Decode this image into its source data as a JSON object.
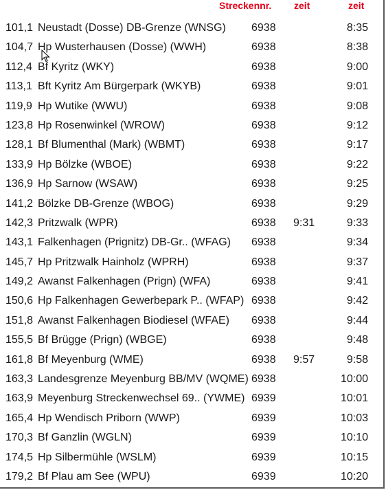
{
  "header": {
    "strecke_label": "Streckennr.",
    "arrival_label": "zeit",
    "departure_label": "zeit"
  },
  "rows": [
    {
      "km": "101,1",
      "station": "Neustadt (Dosse) DB-Grenze (WNSG)",
      "line": "6938",
      "arr": "",
      "dep": "8:35"
    },
    {
      "km": "104,7",
      "station": "Hp Wusterhausen (Dosse) (WWH)",
      "line": "6938",
      "arr": "",
      "dep": "8:38"
    },
    {
      "km": "112,4",
      "station": "Bf Kyritz (WKY)",
      "line": "6938",
      "arr": "",
      "dep": "9:00"
    },
    {
      "km": "113,1",
      "station": "Bft Kyritz Am Bürgerpark (WKYB)",
      "line": "6938",
      "arr": "",
      "dep": "9:01"
    },
    {
      "km": "119,9",
      "station": "Hp Wutike (WWU)",
      "line": "6938",
      "arr": "",
      "dep": "9:08"
    },
    {
      "km": "123,8",
      "station": "Hp Rosenwinkel (WROW)",
      "line": "6938",
      "arr": "",
      "dep": "9:12"
    },
    {
      "km": "128,1",
      "station": "Bf Blumenthal (Mark) (WBMT)",
      "line": "6938",
      "arr": "",
      "dep": "9:17"
    },
    {
      "km": "133,9",
      "station": "Hp Bölzke (WBOE)",
      "line": "6938",
      "arr": "",
      "dep": "9:22"
    },
    {
      "km": "136,9",
      "station": "Hp Sarnow (WSAW)",
      "line": "6938",
      "arr": "",
      "dep": "9:25"
    },
    {
      "km": "141,2",
      "station": "Bölzke DB-Grenze (WBOG)",
      "line": "6938",
      "arr": "",
      "dep": "9:29"
    },
    {
      "km": "142,3",
      "station": "Pritzwalk (WPR)",
      "line": "6938",
      "arr": "9:31",
      "dep": "9:33"
    },
    {
      "km": "143,1",
      "station": "Falkenhagen (Prignitz) DB-Gr.. (WFAG)",
      "line": "6938",
      "arr": "",
      "dep": "9:34"
    },
    {
      "km": "145,7",
      "station": "Hp Pritzwalk Hainholz (WPRH)",
      "line": "6938",
      "arr": "",
      "dep": "9:37"
    },
    {
      "km": "149,2",
      "station": "Awanst Falkenhagen (Prign) (WFA)",
      "line": "6938",
      "arr": "",
      "dep": "9:41"
    },
    {
      "km": "150,6",
      "station": "Hp Falkenhagen Gewerbepark P.. (WFAP)",
      "line": "6938",
      "arr": "",
      "dep": "9:42"
    },
    {
      "km": "151,8",
      "station": "Awanst Falkenhagen Biodiesel (WFAE)",
      "line": "6938",
      "arr": "",
      "dep": "9:44"
    },
    {
      "km": "155,5",
      "station": "Bf Brügge (Prign) (WBGE)",
      "line": "6938",
      "arr": "",
      "dep": "9:48"
    },
    {
      "km": "161,8",
      "station": "Bf Meyenburg (WME)",
      "line": "6938",
      "arr": "9:57",
      "dep": "9:58"
    },
    {
      "km": "163,3",
      "station": "Landesgrenze Meyenburg BB/MV (WQME)",
      "line": "6938",
      "arr": "",
      "dep": "10:00"
    },
    {
      "km": "163,9",
      "station": "Meyenburg Streckenwechsel 69.. (YWME)",
      "line": "6939",
      "arr": "",
      "dep": "10:01"
    },
    {
      "km": "165,4",
      "station": "Hp Wendisch Priborn (WWP)",
      "line": "6939",
      "arr": "",
      "dep": "10:03"
    },
    {
      "km": "170,3",
      "station": "Bf Ganzlin (WGLN)",
      "line": "6939",
      "arr": "",
      "dep": "10:10"
    },
    {
      "km": "174,5",
      "station": "Hp Silbermühle (WSLM)",
      "line": "6939",
      "arr": "",
      "dep": "10:15"
    },
    {
      "km": "179,2",
      "station": "Bf Plau am See (WPU)",
      "line": "6939",
      "arr": "",
      "dep": "10:20"
    }
  ]
}
